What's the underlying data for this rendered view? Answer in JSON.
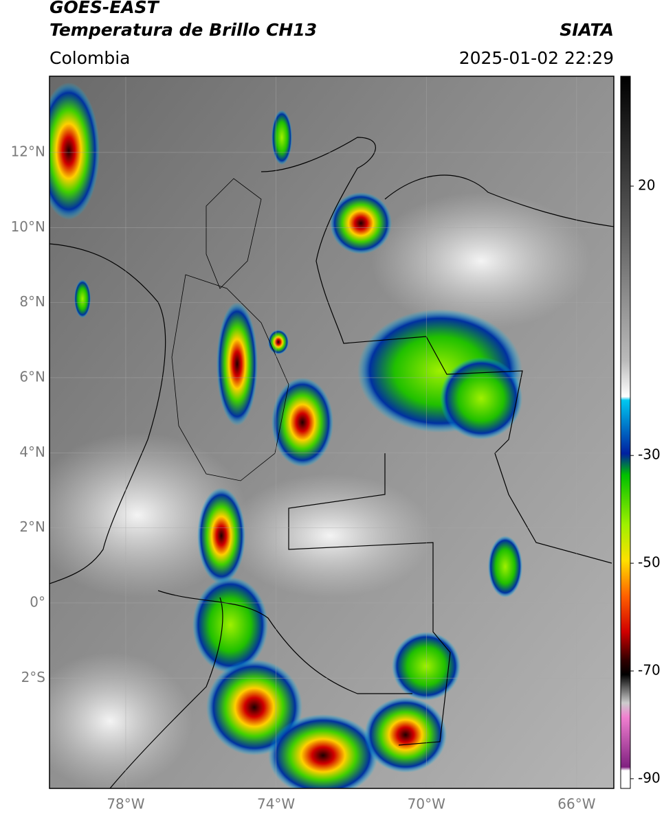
{
  "header": {
    "satellite": "GOES-EAST",
    "product": "Temperatura de Brillo CH13",
    "agency": "SIATA",
    "region": "Colombia",
    "datetime": "2025-01-02 22:29"
  },
  "map": {
    "lat_lim": [
      -4.94,
      14.03
    ],
    "lon_lim": [
      -80.03,
      -65.01
    ],
    "lat_ticks": [
      {
        "value": 12,
        "label": "12°N"
      },
      {
        "value": 10,
        "label": "10°N"
      },
      {
        "value": 8,
        "label": "8°N"
      },
      {
        "value": 6,
        "label": "6°N"
      },
      {
        "value": 4,
        "label": "4°N"
      },
      {
        "value": 2,
        "label": "2°N"
      },
      {
        "value": 0,
        "label": "0°"
      },
      {
        "value": -2,
        "label": "2°S"
      }
    ],
    "lon_ticks": [
      {
        "value": -78,
        "label": "78°W"
      },
      {
        "value": -74,
        "label": "74°W"
      },
      {
        "value": -70,
        "label": "70°W"
      },
      {
        "value": -66,
        "label": "66°W"
      }
    ],
    "grid": true
  },
  "colorbar": {
    "lim": [
      -91.8,
      40.4
    ],
    "ticks": [
      20,
      -30,
      -50,
      -70,
      -90
    ]
  }
}
